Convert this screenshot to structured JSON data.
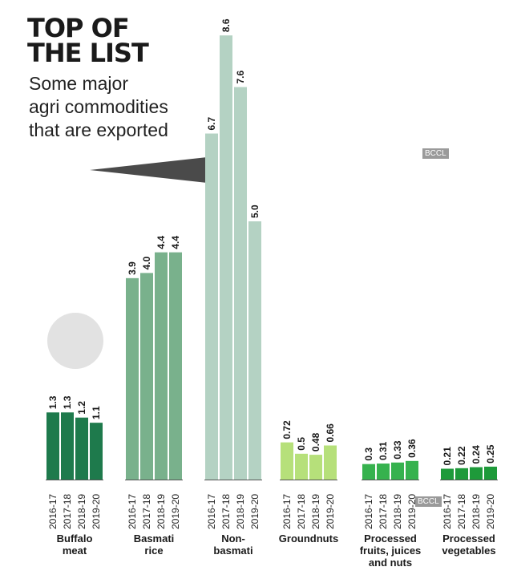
{
  "header": {
    "title_lines": [
      "TOP OF",
      "THE LIST"
    ],
    "subtitle_lines": [
      "Some major",
      "agri commodities",
      "that are exported"
    ]
  },
  "watermarks": [
    "BCCL",
    "BCCL"
  ],
  "colors": {
    "Buffalo meat": "#1e7a4c",
    "Basmati rice": "#79b18c",
    "Non-basmati": "#b4d2c3",
    "Groundnuts": "#b6e07a",
    "Processed fruits, juices and nuts": "#36b24e",
    "Processed vegetables": "#1e9a3a",
    "pointer": "#4a4a4a",
    "circle": "#e2e2e2"
  },
  "chart_data": {
    "type": "bar",
    "title": "TOP OF THE LIST",
    "subtitle": "Some major agri commodities that are exported",
    "years": [
      "2016-17",
      "2017-18",
      "2018-19",
      "2019-20"
    ],
    "groups": [
      {
        "name": "Buffalo meat",
        "label_lines": [
          "Buffalo",
          "meat"
        ],
        "values": [
          1.3,
          1.3,
          1.2,
          1.1
        ],
        "labels": [
          "1.3",
          "1.3",
          "1.2",
          "1.1"
        ]
      },
      {
        "name": "Basmati rice",
        "label_lines": [
          "Basmati",
          "rice"
        ],
        "values": [
          3.9,
          4.0,
          4.4,
          4.4
        ],
        "labels": [
          "3.9",
          "4.0",
          "4.4",
          "4.4"
        ]
      },
      {
        "name": "Non-basmati",
        "label_lines": [
          "Non-",
          "basmati"
        ],
        "values": [
          6.7,
          8.6,
          7.6,
          5.0
        ],
        "labels": [
          "6.7",
          "8.6",
          "7.6",
          "5.0"
        ]
      },
      {
        "name": "Groundnuts",
        "label_lines": [
          "Groundnuts"
        ],
        "values": [
          0.72,
          0.5,
          0.48,
          0.66
        ],
        "labels": [
          "0.72",
          "0.5",
          "0.48",
          "0.66"
        ]
      },
      {
        "name": "Processed fruits, juices and nuts",
        "label_lines": [
          "Processed",
          "fruits, juices",
          "and nuts"
        ],
        "values": [
          0.3,
          0.31,
          0.33,
          0.36
        ],
        "labels": [
          "0.3",
          "0.31",
          "0.33",
          "0.36"
        ]
      },
      {
        "name": "Processed vegetables",
        "label_lines": [
          "Processed",
          "vegetables"
        ],
        "values": [
          0.21,
          0.22,
          0.24,
          0.25
        ],
        "labels": [
          "0.21",
          "0.22",
          "0.24",
          "0.25"
        ]
      }
    ],
    "ylim": [
      0,
      8.6
    ],
    "grid": false,
    "legend": "none",
    "xlabel": "",
    "ylabel": ""
  }
}
